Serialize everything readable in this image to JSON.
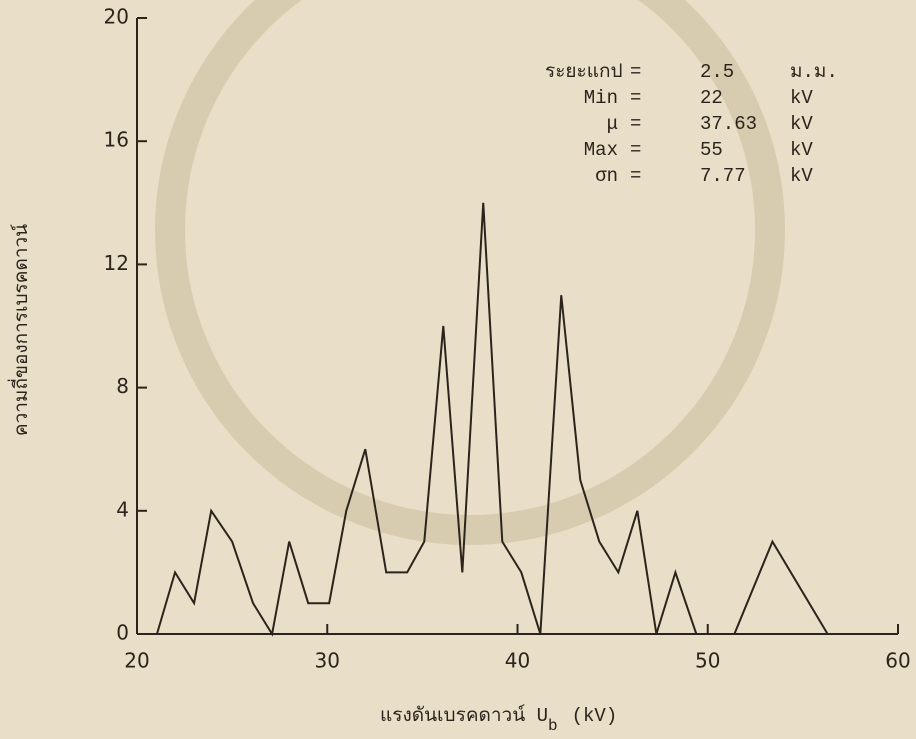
{
  "chart_data": {
    "type": "line",
    "y_label": "ความถี่ของการเบรคดาวน์",
    "x_label": [
      "แรงดันเบรคดาวน์ U",
      "b",
      "(kV)"
    ],
    "x": [
      21.05,
      22,
      23,
      23.9,
      25,
      26.1,
      27.1,
      28,
      29,
      30.1,
      31,
      32,
      33.1,
      34.2,
      35.1,
      36.1,
      37.1,
      38.2,
      39.2,
      40.2,
      41.2,
      42.3,
      43.3,
      44.3,
      45.3,
      46.3,
      47.3,
      48.3,
      49.4,
      51.4,
      53.4,
      56.3
    ],
    "values": [
      0,
      2,
      1,
      4,
      3,
      1,
      0,
      3,
      1,
      1,
      4,
      6,
      2,
      2,
      3,
      10,
      2,
      14,
      3,
      2,
      0,
      11,
      5,
      3,
      2,
      4,
      0,
      2,
      0,
      0,
      3,
      0
    ],
    "color": "#2a241c",
    "xlim": [
      20,
      60
    ],
    "xticks": [
      20,
      30,
      40,
      50,
      60
    ],
    "ylim": [
      0,
      20
    ],
    "yticks": [
      0,
      4,
      8,
      12,
      16,
      20
    ],
    "stats": [
      [
        "ระยะแกป",
        "=",
        "2.5",
        "ม.ม."
      ],
      [
        "Min",
        "=",
        "22",
        "kV"
      ],
      [
        "μ",
        "=",
        "37.63",
        "kV"
      ],
      [
        "Max",
        "=",
        "55",
        "kV"
      ],
      [
        "σn",
        "=",
        "7.77",
        "kV"
      ]
    ]
  }
}
